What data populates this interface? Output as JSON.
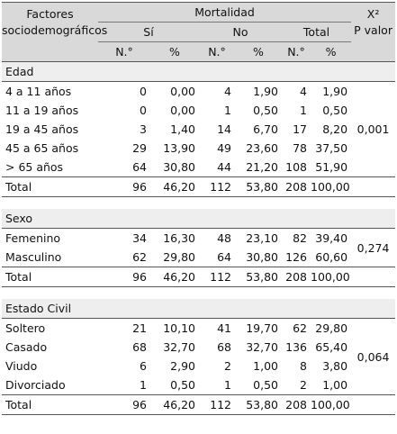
{
  "header": {
    "factor_label_line1": "Factores",
    "factor_label_line2": "sociodemográficos",
    "mortality_label": "Mortalidad",
    "si_label": "Sí",
    "no_label": "No",
    "total_label": "Total",
    "chi_label": "X²",
    "pvalue_label": "P valor",
    "n_label": "N.°",
    "pct_label": "%"
  },
  "sections": [
    {
      "title": "Edad",
      "p_value": "0,001",
      "rows": [
        {
          "label": "4 a 11 años",
          "si_n": "0",
          "si_pct": "0,00",
          "no_n": "4",
          "no_pct": "1,90",
          "tot_n": "4",
          "tot_pct": "1,90"
        },
        {
          "label": "11 a 19 años",
          "si_n": "0",
          "si_pct": "0,00",
          "no_n": "1",
          "no_pct": "0,50",
          "tot_n": "1",
          "tot_pct": "0,50"
        },
        {
          "label": "19 a 45 años",
          "si_n": "3",
          "si_pct": "1,40",
          "no_n": "14",
          "no_pct": "6,70",
          "tot_n": "17",
          "tot_pct": "8,20"
        },
        {
          "label": "45 a 65 años",
          "si_n": "29",
          "si_pct": "13,90",
          "no_n": "49",
          "no_pct": "23,60",
          "tot_n": "78",
          "tot_pct": "37,50"
        },
        {
          "label": "> 65 años",
          "si_n": "64",
          "si_pct": "30,80",
          "no_n": "44",
          "no_pct": "21,20",
          "tot_n": "108",
          "tot_pct": "51,90"
        }
      ],
      "total": {
        "label": "Total",
        "si_n": "96",
        "si_pct": "46,20",
        "no_n": "112",
        "no_pct": "53,80",
        "tot_n": "208",
        "tot_pct": "100,00"
      }
    },
    {
      "title": "Sexo",
      "p_value": "0,274",
      "rows": [
        {
          "label": "Femenino",
          "si_n": "34",
          "si_pct": "16,30",
          "no_n": "48",
          "no_pct": "23,10",
          "tot_n": "82",
          "tot_pct": "39,40"
        },
        {
          "label": "Masculino",
          "si_n": "62",
          "si_pct": "29,80",
          "no_n": "64",
          "no_pct": "30,80",
          "tot_n": "126",
          "tot_pct": "60,60"
        }
      ],
      "total": {
        "label": "Total",
        "si_n": "96",
        "si_pct": "46,20",
        "no_n": "112",
        "no_pct": "53,80",
        "tot_n": "208",
        "tot_pct": "100,00"
      }
    },
    {
      "title": "Estado Civil",
      "p_value": "0,064",
      "rows": [
        {
          "label": "Soltero",
          "si_n": "21",
          "si_pct": "10,10",
          "no_n": "41",
          "no_pct": "19,70",
          "tot_n": "62",
          "tot_pct": "29,80"
        },
        {
          "label": "Casado",
          "si_n": "68",
          "si_pct": "32,70",
          "no_n": "68",
          "no_pct": "32,70",
          "tot_n": "136",
          "tot_pct": "65,40"
        },
        {
          "label": "Viudo",
          "si_n": "6",
          "si_pct": "2,90",
          "no_n": "2",
          "no_pct": "1,00",
          "tot_n": "8",
          "tot_pct": "3,80"
        },
        {
          "label": "Divorciado",
          "si_n": "1",
          "si_pct": "0,50",
          "no_n": "1",
          "no_pct": "0,50",
          "tot_n": "2",
          "tot_pct": "1,00"
        }
      ],
      "total": {
        "label": "Total",
        "si_n": "96",
        "si_pct": "46,20",
        "no_n": "112",
        "no_pct": "53,80",
        "tot_n": "208",
        "tot_pct": "100,00"
      }
    }
  ],
  "colors": {
    "header_bg": "#d9d9d9",
    "section_bg": "#eeeeee"
  }
}
